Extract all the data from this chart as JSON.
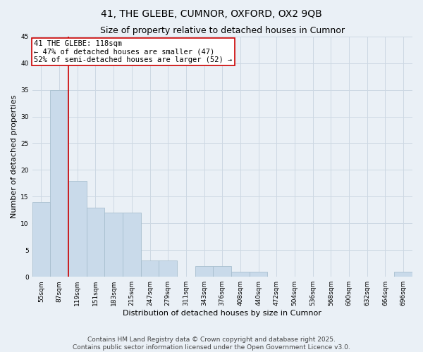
{
  "title1": "41, THE GLEBE, CUMNOR, OXFORD, OX2 9QB",
  "title2": "Size of property relative to detached houses in Cumnor",
  "xlabel": "Distribution of detached houses by size in Cumnor",
  "ylabel": "Number of detached properties",
  "footer1": "Contains HM Land Registry data © Crown copyright and database right 2025.",
  "footer2": "Contains public sector information licensed under the Open Government Licence v3.0.",
  "bin_labels": [
    "55sqm",
    "87sqm",
    "119sqm",
    "151sqm",
    "183sqm",
    "215sqm",
    "247sqm",
    "279sqm",
    "311sqm",
    "343sqm",
    "376sqm",
    "408sqm",
    "440sqm",
    "472sqm",
    "504sqm",
    "536sqm",
    "568sqm",
    "600sqm",
    "632sqm",
    "664sqm",
    "696sqm"
  ],
  "bar_values": [
    14,
    35,
    18,
    13,
    12,
    12,
    3,
    3,
    0,
    2,
    2,
    1,
    1,
    0,
    0,
    0,
    0,
    0,
    0,
    0,
    1
  ],
  "bar_color": "#c9daea",
  "bar_edge_color": "#a8bfcf",
  "grid_color": "#cdd8e3",
  "background_color": "#eaf0f6",
  "ylim": [
    0,
    45
  ],
  "yticks": [
    0,
    5,
    10,
    15,
    20,
    25,
    30,
    35,
    40,
    45
  ],
  "property_bin_index": 2,
  "vline_color": "#cc0000",
  "annotation_text": "41 THE GLEBE: 118sqm\n← 47% of detached houses are smaller (47)\n52% of semi-detached houses are larger (52) →",
  "annotation_box_color": "#ffffff",
  "annotation_box_edge": "#cc0000",
  "title_fontsize": 10,
  "subtitle_fontsize": 9,
  "axis_label_fontsize": 8,
  "tick_fontsize": 6.5,
  "annotation_fontsize": 7.5,
  "footer_fontsize": 6.5
}
